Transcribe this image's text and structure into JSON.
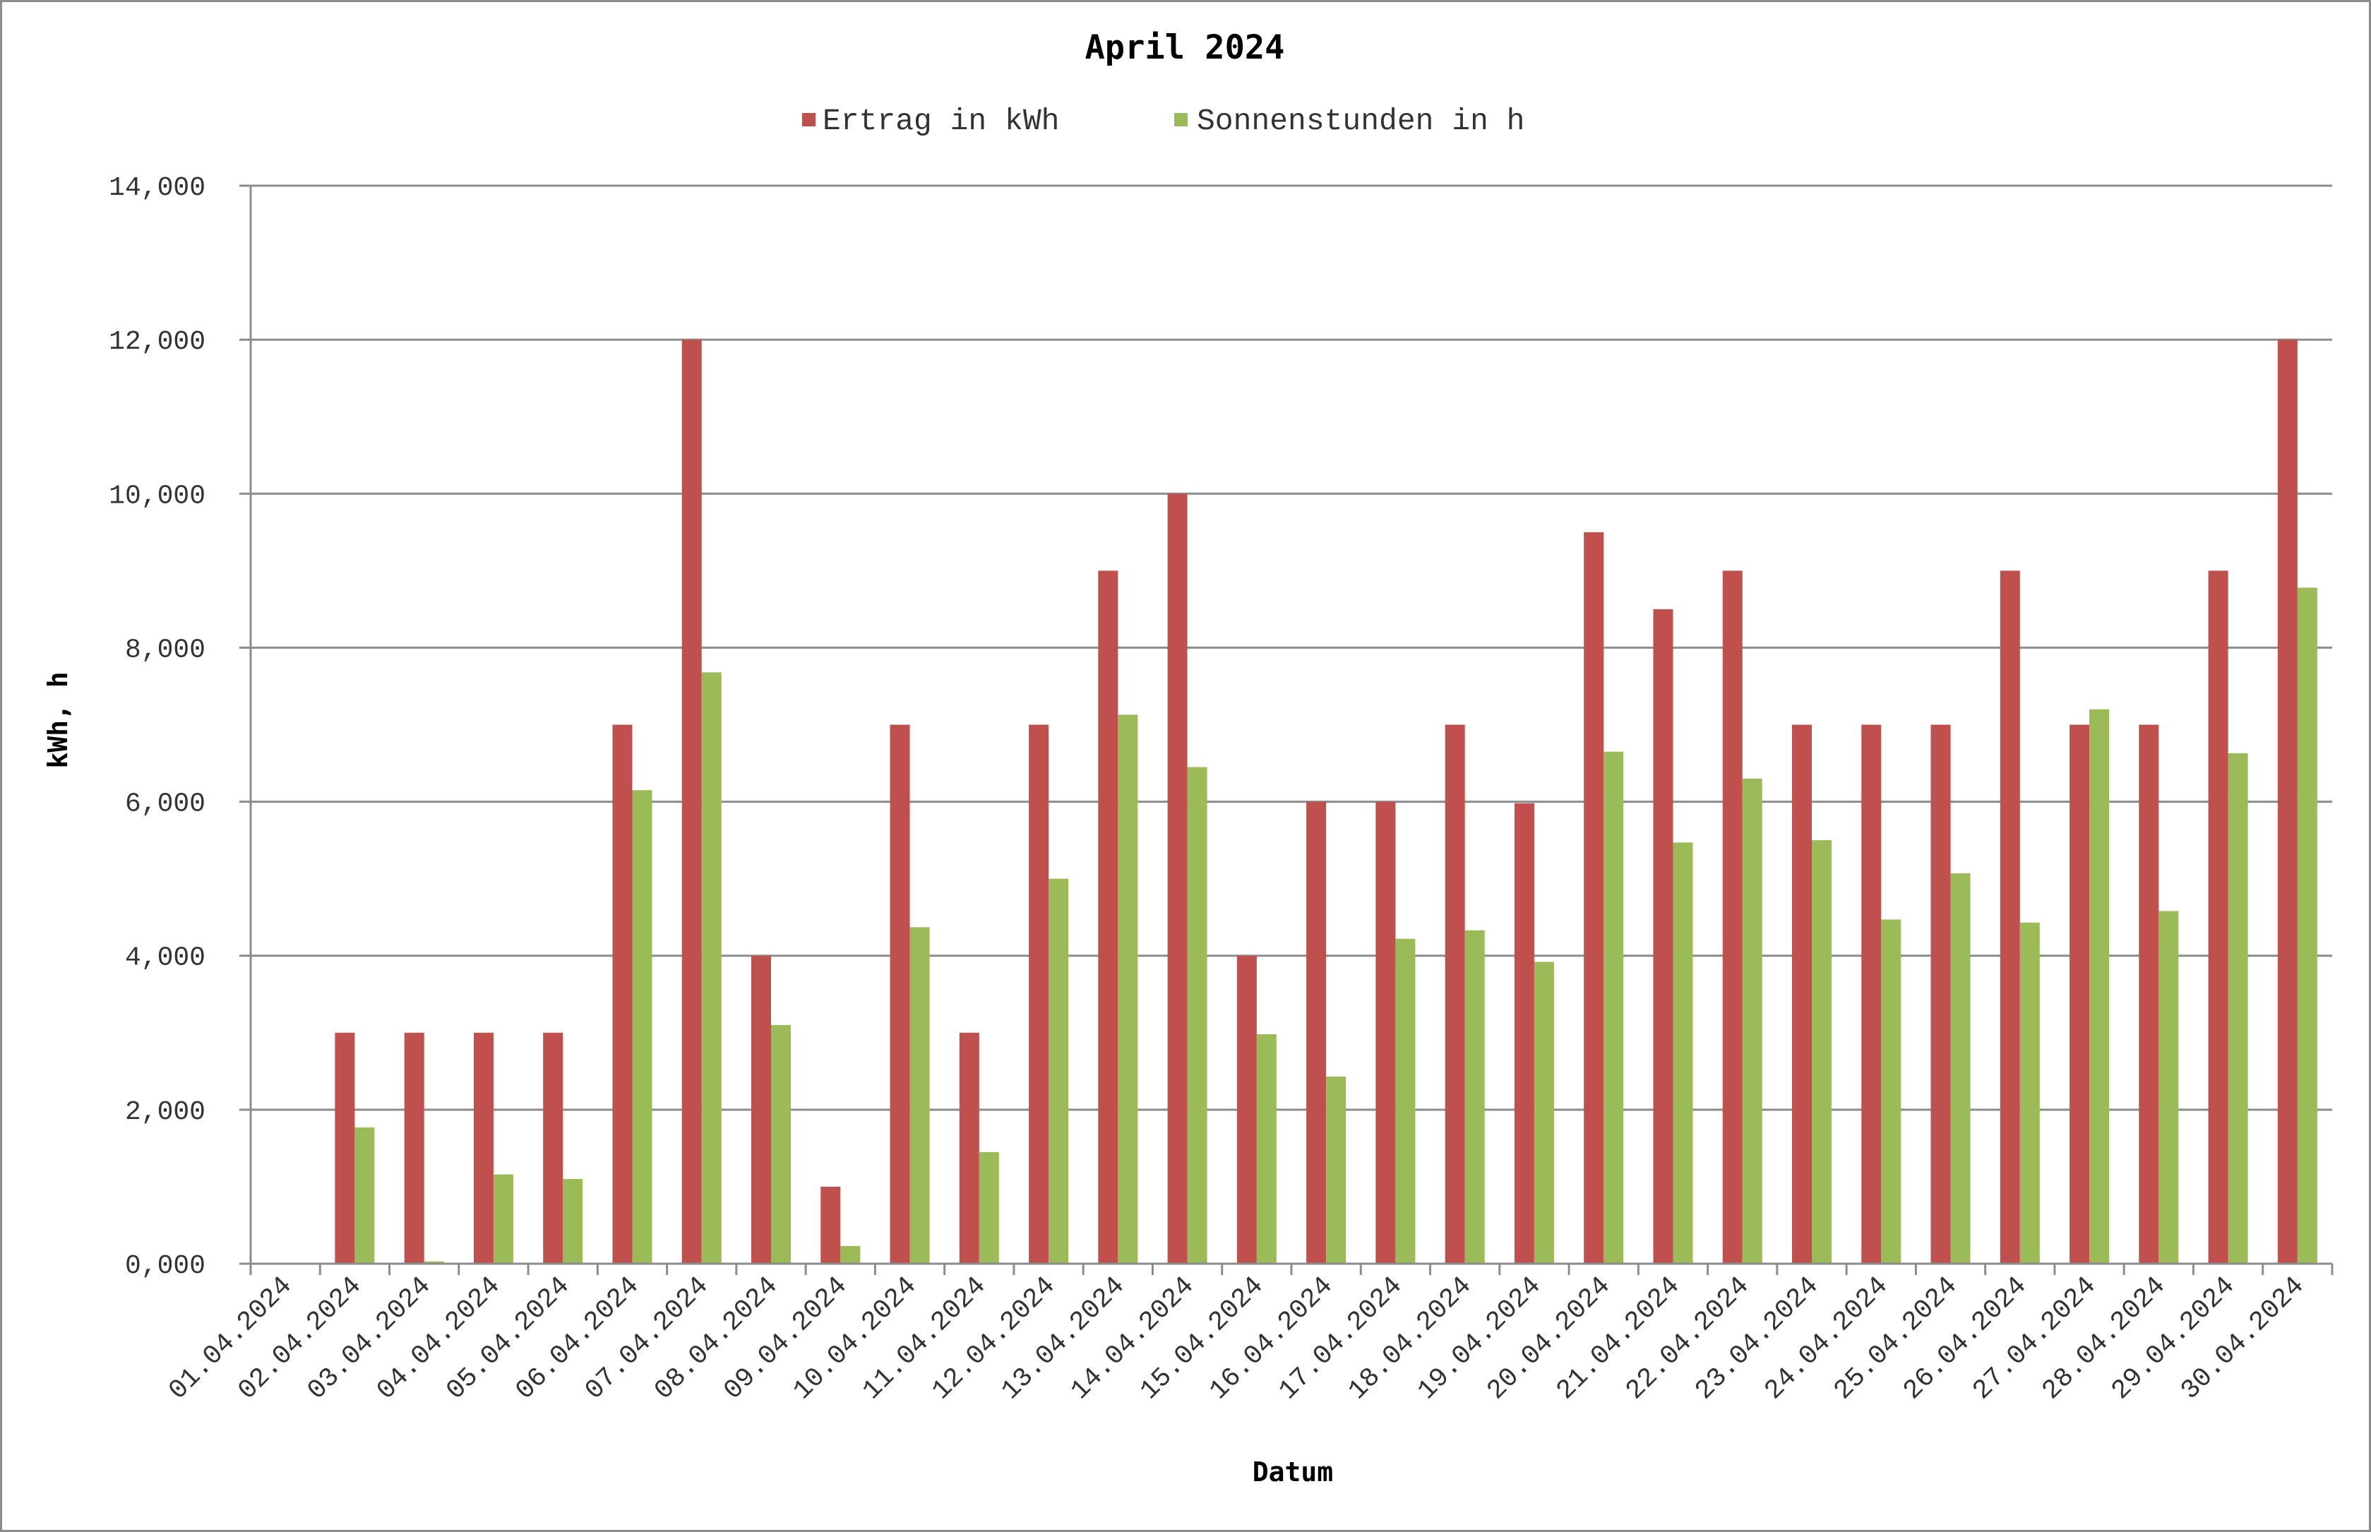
{
  "chart_data": {
    "type": "bar",
    "title": "April 2024",
    "xlabel": "Datum",
    "ylabel": "kWh, h",
    "ylim": [
      0,
      14
    ],
    "y_ticks": [
      "0,000",
      "2,000",
      "4,000",
      "6,000",
      "8,000",
      "10,000",
      "12,000",
      "14,000"
    ],
    "grid": true,
    "legend_position": "top",
    "categories": [
      "01.04.2024",
      "02.04.2024",
      "03.04.2024",
      "04.04.2024",
      "05.04.2024",
      "06.04.2024",
      "07.04.2024",
      "08.04.2024",
      "09.04.2024",
      "10.04.2024",
      "11.04.2024",
      "12.04.2024",
      "13.04.2024",
      "14.04.2024",
      "15.04.2024",
      "16.04.2024",
      "17.04.2024",
      "18.04.2024",
      "19.04.2024",
      "20.04.2024",
      "21.04.2024",
      "22.04.2024",
      "23.04.2024",
      "24.04.2024",
      "25.04.2024",
      "26.04.2024",
      "27.04.2024",
      "28.04.2024",
      "29.04.2024",
      "30.04.2024"
    ],
    "series": [
      {
        "name": "Ertrag in kWh",
        "color": "#c0504d",
        "values": [
          0,
          3,
          3,
          3,
          3,
          7,
          12,
          4,
          1,
          7,
          3,
          7,
          9,
          10,
          4,
          6,
          6,
          7,
          5.98,
          9.5,
          8.5,
          9,
          7,
          7,
          7,
          9,
          7,
          7,
          9,
          12
        ]
      },
      {
        "name": "Sonnenstunden in h",
        "color": "#9bbb59",
        "values": [
          0,
          1.77,
          0.03,
          1.16,
          1.1,
          6.15,
          7.68,
          3.1,
          0.23,
          4.37,
          1.45,
          5.0,
          7.13,
          6.45,
          2.98,
          2.43,
          4.22,
          4.33,
          3.92,
          6.65,
          5.47,
          6.3,
          5.5,
          4.47,
          5.07,
          4.43,
          7.2,
          4.58,
          6.63,
          8.78
        ]
      }
    ]
  }
}
